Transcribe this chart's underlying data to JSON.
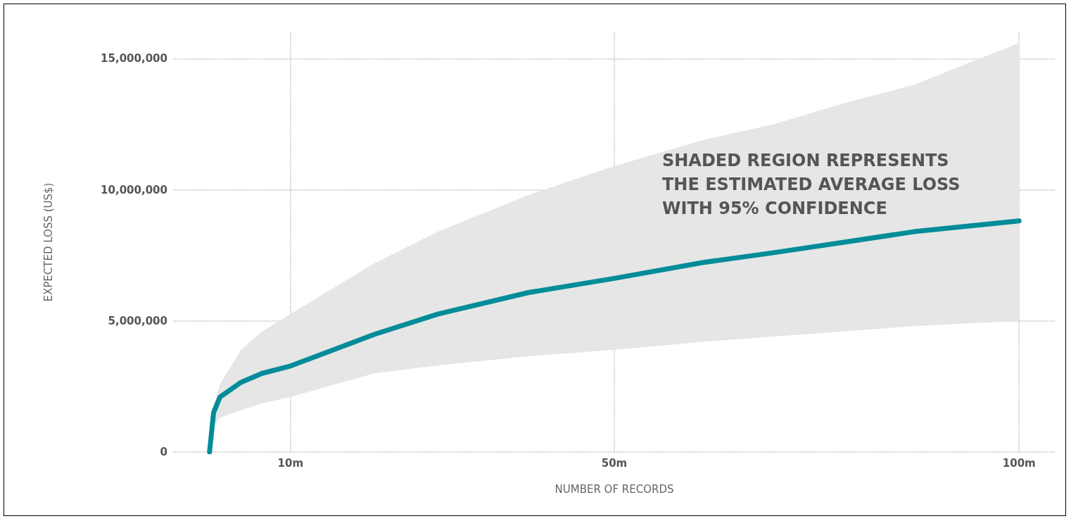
{
  "chart_data": {
    "type": "line",
    "xlabel": "NUMBER OF RECORDS",
    "ylabel": "EXPECTED LOSS (US$)",
    "annotations": [
      "SHADED REGION REPRESENTS\nTHE ESTIMATED AVERAGE LOSS\nWITH 95% CONFIDENCE"
    ],
    "x": [
      0,
      0.5,
      1.3,
      3.9,
      6.5,
      10,
      20.4,
      28.2,
      39.4,
      50,
      61,
      69.7,
      78.4,
      87,
      100
    ],
    "series": [
      {
        "color": "#008c99",
        "values": [
          0,
          1500000,
          2100000,
          2660000,
          3000000,
          3280000,
          4490000,
          5260000,
          6080000,
          6620000,
          7230000,
          7600000,
          8000000,
          8400000,
          8810000
        ],
        "lower": [
          0,
          1000000,
          1300000,
          1600000,
          1850000,
          2100000,
          3000000,
          3300000,
          3650000,
          3900000,
          4200000,
          4400000,
          4600000,
          4800000,
          5000000
        ],
        "upper": [
          0,
          1800000,
          2600000,
          3900000,
          4600000,
          5260000,
          7200000,
          8400000,
          9800000,
          10900000,
          11900000,
          12500000,
          13300000,
          14000000,
          15600000
        ]
      }
    ],
    "xlim": [
      -4.5,
      104.5
    ],
    "xticks": [
      {
        "value": 10,
        "label": "10m"
      },
      {
        "value": 50,
        "label": "50m"
      },
      {
        "value": 100,
        "label": "100m"
      }
    ],
    "ylim": [
      0,
      16000000
    ],
    "yticks": [
      {
        "value": 0,
        "label": "0"
      },
      {
        "value": 5000000,
        "label": "5,000,000"
      },
      {
        "value": 10000000,
        "label": "10,000,000"
      },
      {
        "value": 15000000,
        "label": "15,000,000"
      }
    ],
    "grid": true,
    "marker": "none",
    "line_style": "solid"
  }
}
